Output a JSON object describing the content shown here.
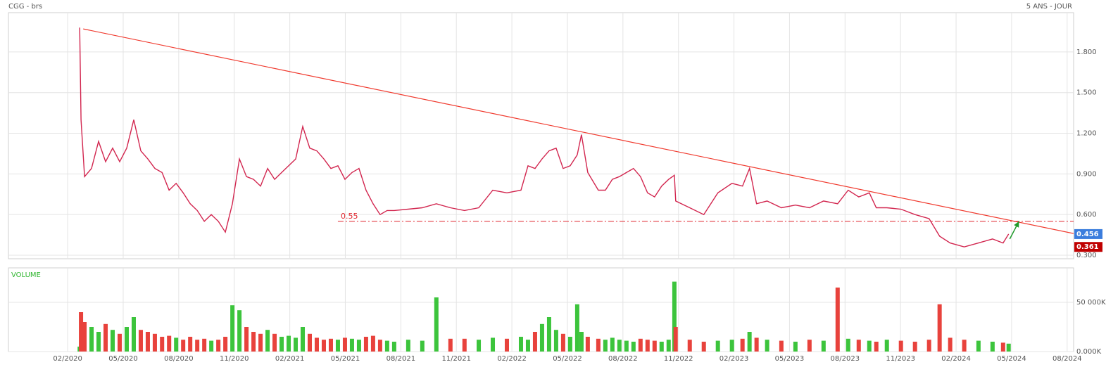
{
  "chart_data": [
    {
      "type": "line",
      "title": "CGG - brs",
      "subtitle": "5 ANS - JOUR",
      "x": [
        1.65,
        1.72,
        1.91,
        2.29,
        2.67,
        3.05,
        3.43,
        3.81,
        4.19,
        4.57,
        4.95,
        5.33,
        5.71,
        6.1,
        6.48,
        6.86,
        7.24,
        7.62,
        8.0,
        8.38,
        8.76,
        9.14,
        9.52,
        9.9,
        10.28,
        10.66,
        11.04,
        11.42,
        11.8,
        12.18,
        12.56,
        12.94,
        13.32,
        13.7,
        14.08,
        14.46,
        14.84,
        15.22,
        15.6,
        15.98,
        16.36,
        16.74,
        17.12,
        17.5,
        17.88,
        18.26,
        18.64,
        19.4,
        20.16,
        20.92,
        21.68,
        22.44,
        23.21,
        23.97,
        24.73,
        25.49,
        25.87,
        26.25,
        26.63,
        27.01,
        27.39,
        27.77,
        28.15,
        28.53,
        28.76,
        29.1,
        29.67,
        30.05,
        30.43,
        30.81,
        31.19,
        31.57,
        31.95,
        32.33,
        32.71,
        33.09,
        33.47,
        33.78,
        33.85,
        34.61,
        35.37,
        36.13,
        36.89,
        37.46,
        37.84,
        38.22,
        38.79,
        39.56,
        40.32,
        41.08,
        41.84,
        42.6,
        43.17,
        43.74,
        44.31,
        44.69,
        45.26,
        46.02,
        46.78,
        47.54,
        48.11,
        48.68,
        49.44,
        50.21,
        50.97,
        51.54,
        51.84
      ],
      "values": [
        1.98,
        1.3,
        0.88,
        0.94,
        1.14,
        0.99,
        1.09,
        0.99,
        1.09,
        1.3,
        1.07,
        1.01,
        0.94,
        0.91,
        0.78,
        0.83,
        0.76,
        0.68,
        0.63,
        0.55,
        0.6,
        0.55,
        0.47,
        0.68,
        1.01,
        0.88,
        0.86,
        0.81,
        0.94,
        0.86,
        0.91,
        0.96,
        1.01,
        1.25,
        1.09,
        1.07,
        1.01,
        0.94,
        0.96,
        0.86,
        0.91,
        0.94,
        0.78,
        0.68,
        0.6,
        0.63,
        0.63,
        0.64,
        0.65,
        0.68,
        0.65,
        0.63,
        0.65,
        0.78,
        0.76,
        0.78,
        0.96,
        0.94,
        1.01,
        1.07,
        1.09,
        0.94,
        0.96,
        1.04,
        1.19,
        0.91,
        0.78,
        0.78,
        0.86,
        0.88,
        0.91,
        0.94,
        0.88,
        0.76,
        0.73,
        0.81,
        0.86,
        0.89,
        0.7,
        0.65,
        0.6,
        0.76,
        0.83,
        0.81,
        0.94,
        0.68,
        0.7,
        0.65,
        0.67,
        0.65,
        0.7,
        0.68,
        0.78,
        0.73,
        0.76,
        0.65,
        0.65,
        0.64,
        0.6,
        0.57,
        0.44,
        0.39,
        0.361,
        0.39,
        0.42,
        0.39,
        0.456
      ],
      "color": "#d2264f",
      "xlim": [
        -2.2,
        55.35
      ],
      "ylim": [
        0.274,
        2.09
      ],
      "yticks": [
        {
          "value": 0.3,
          "label": "0.300"
        },
        {
          "value": 0.6,
          "label": "0.600"
        },
        {
          "value": 0.9,
          "label": "0.900"
        },
        {
          "value": 1.2,
          "label": "1.200"
        },
        {
          "value": 1.5,
          "label": "1.500"
        },
        {
          "value": 1.8,
          "label": "1.800"
        }
      ],
      "trendline": {
        "x": [
          1.84,
          55.35
        ],
        "y": [
          1.97,
          0.46
        ],
        "color": "#f03a2e"
      },
      "level": {
        "value": 0.55,
        "x_start": 15.6,
        "color": "#e0262e"
      },
      "arrow": {
        "x": [
          51.9,
          52.4
        ],
        "y": [
          0.42,
          0.55
        ],
        "color": "#1f9a2a"
      },
      "price_labels": [
        {
          "value": 0.456,
          "label": "0.456",
          "color": "#3b7ddd"
        },
        {
          "value": 0.361,
          "label": "0.361",
          "color": "#c00000"
        }
      ],
      "grid": true
    },
    {
      "type": "bar",
      "title": "VOLUME",
      "x": [
        1.65,
        1.72,
        1.91,
        2.29,
        2.67,
        3.05,
        3.43,
        3.81,
        4.19,
        4.57,
        4.95,
        5.33,
        5.71,
        6.1,
        6.48,
        6.86,
        7.24,
        7.62,
        8.0,
        8.38,
        8.76,
        9.14,
        9.52,
        9.9,
        10.28,
        10.66,
        11.04,
        11.42,
        11.8,
        12.18,
        12.56,
        12.94,
        13.32,
        13.7,
        14.08,
        14.46,
        14.84,
        15.22,
        15.6,
        15.98,
        16.36,
        16.74,
        17.12,
        17.5,
        17.88,
        18.26,
        18.64,
        19.4,
        20.16,
        20.92,
        21.68,
        22.44,
        23.21,
        23.97,
        24.73,
        25.49,
        25.87,
        26.25,
        26.63,
        27.01,
        27.39,
        27.77,
        28.15,
        28.53,
        28.76,
        29.1,
        29.67,
        30.05,
        30.43,
        30.81,
        31.19,
        31.57,
        31.95,
        32.33,
        32.71,
        33.09,
        33.47,
        33.78,
        33.85,
        34.61,
        35.37,
        36.13,
        36.89,
        37.46,
        37.84,
        38.22,
        38.79,
        39.56,
        40.32,
        41.08,
        41.84,
        42.6,
        43.17,
        43.74,
        44.31,
        44.69,
        45.26,
        46.02,
        46.78,
        47.54,
        48.11,
        48.68,
        49.44,
        50.21,
        50.97,
        51.54,
        51.84
      ],
      "values": [
        5000,
        40000,
        30000,
        25000,
        20000,
        28000,
        22000,
        18000,
        25000,
        35000,
        22000,
        20000,
        18000,
        15000,
        16000,
        14000,
        12000,
        15000,
        12000,
        13000,
        11000,
        12000,
        15000,
        47000,
        42000,
        25000,
        20000,
        18000,
        22000,
        18000,
        15000,
        16000,
        14000,
        25000,
        18000,
        14000,
        12000,
        13000,
        12000,
        14000,
        13000,
        12000,
        15000,
        16000,
        12000,
        11000,
        10000,
        12000,
        11000,
        55000,
        13000,
        13000,
        12000,
        14000,
        13000,
        15000,
        12000,
        20000,
        28000,
        35000,
        22000,
        18000,
        15000,
        48000,
        20000,
        15000,
        13000,
        12000,
        14000,
        12000,
        11000,
        10000,
        13000,
        12000,
        11000,
        10000,
        12000,
        71000,
        25000,
        12000,
        10000,
        11000,
        12000,
        13000,
        20000,
        14000,
        12000,
        11000,
        10000,
        12000,
        11000,
        65000,
        13000,
        12000,
        11000,
        10000,
        12000,
        11000,
        10000,
        12000,
        48000,
        14000,
        12000,
        11000,
        10000,
        9000,
        8000
      ],
      "up_color": "#3cc43c",
      "down_color": "#e8423c",
      "xlim": [
        -2.2,
        55.35
      ],
      "ylim": [
        0,
        85000
      ],
      "yticks": [
        {
          "value": 0,
          "label": "0.000K"
        },
        {
          "value": 50000,
          "label": "50 000K"
        }
      ],
      "xticks": [
        {
          "value": 1,
          "label": "02/2020"
        },
        {
          "value": 4,
          "label": "05/2020"
        },
        {
          "value": 7,
          "label": "08/2020"
        },
        {
          "value": 10,
          "label": "11/2020"
        },
        {
          "value": 13,
          "label": "02/2021"
        },
        {
          "value": 16,
          "label": "05/2021"
        },
        {
          "value": 19,
          "label": "08/2021"
        },
        {
          "value": 22,
          "label": "11/2021"
        },
        {
          "value": 25,
          "label": "02/2022"
        },
        {
          "value": 28,
          "label": "05/2022"
        },
        {
          "value": 31,
          "label": "08/2022"
        },
        {
          "value": 34,
          "label": "11/2022"
        },
        {
          "value": 37,
          "label": "02/2023"
        },
        {
          "value": 40,
          "label": "05/2023"
        },
        {
          "value": 43,
          "label": "08/2023"
        },
        {
          "value": 46,
          "label": "11/2023"
        },
        {
          "value": 49,
          "label": "02/2024"
        },
        {
          "value": 52,
          "label": "05/2024"
        },
        {
          "value": 55,
          "label": "08/2024"
        }
      ],
      "grid": true
    }
  ]
}
